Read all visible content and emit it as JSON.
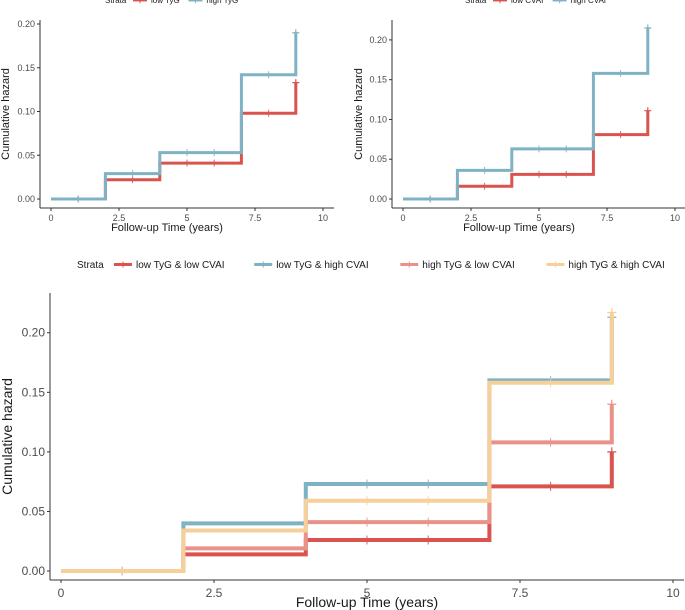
{
  "chart_data": [
    {
      "id": "tyg",
      "type": "line",
      "step": true,
      "xlabel": "Follow-up Time (years)",
      "ylabel": "Cumulative hazard",
      "xlim": [
        0,
        10
      ],
      "ylim": [
        0,
        0.2
      ],
      "xticks": [
        0,
        2.5,
        5,
        7.5,
        10
      ],
      "xtick_labels": [
        "0",
        "2.5",
        "5",
        "7.5",
        "10"
      ],
      "yticks": [
        0,
        0.05,
        0.1,
        0.15,
        0.2
      ],
      "ytick_labels": [
        "0.00",
        "0.05",
        "0.10",
        "0.15",
        "0.20"
      ],
      "legend": {
        "title": "Strata",
        "position": "top"
      },
      "series": [
        {
          "name": "low TyG",
          "color": "#d9534f",
          "x": [
            0,
            2,
            4,
            7,
            9
          ],
          "y": [
            0,
            0.022,
            0.041,
            0.098,
            0.133
          ],
          "censor_x": [
            1,
            3,
            5,
            6,
            8
          ]
        },
        {
          "name": "high TyG",
          "color": "#7fb2c4",
          "x": [
            0,
            2,
            4,
            7,
            9
          ],
          "y": [
            0,
            0.029,
            0.053,
            0.142,
            0.19
          ],
          "censor_x": [
            1,
            3,
            5,
            6,
            8
          ]
        }
      ]
    },
    {
      "id": "cvai",
      "type": "line",
      "step": true,
      "xlabel": "Follow-up Time (years)",
      "ylabel": "Cumulative hazard",
      "xlim": [
        0,
        10
      ],
      "ylim": [
        0,
        0.22
      ],
      "xticks": [
        0,
        2.5,
        5,
        7.5,
        10
      ],
      "xtick_labels": [
        "0",
        "2.5",
        "5",
        "7.5",
        "10"
      ],
      "yticks": [
        0,
        0.05,
        0.1,
        0.15,
        0.2
      ],
      "ytick_labels": [
        "0.00",
        "0.05",
        "0.10",
        "0.15",
        "0.20"
      ],
      "legend": {
        "title": "Strata",
        "position": "top"
      },
      "series": [
        {
          "name": "low CVAI",
          "color": "#d9534f",
          "x": [
            0,
            2,
            4,
            7,
            9
          ],
          "y": [
            0,
            0.016,
            0.031,
            0.081,
            0.111
          ],
          "censor_x": [
            1,
            3,
            5,
            6,
            8
          ]
        },
        {
          "name": "high CVAI",
          "color": "#7fb2c4",
          "x": [
            0,
            2,
            4,
            7,
            9
          ],
          "y": [
            0,
            0.036,
            0.063,
            0.158,
            0.215
          ],
          "censor_x": [
            1,
            3,
            5,
            6,
            8
          ]
        }
      ]
    },
    {
      "id": "combined",
      "type": "line",
      "step": true,
      "xlabel": "Follow-up Time (years)",
      "ylabel": "Cumulative hazard",
      "xlim": [
        0,
        10
      ],
      "ylim": [
        0,
        0.23
      ],
      "xticks": [
        0,
        2.5,
        5,
        7.5,
        10
      ],
      "xtick_labels": [
        "0",
        "2.5",
        "5",
        "7.5",
        "10"
      ],
      "yticks": [
        0,
        0.05,
        0.1,
        0.15,
        0.2
      ],
      "ytick_labels": [
        "0.00",
        "0.05",
        "0.10",
        "0.15",
        "0.20"
      ],
      "legend": {
        "title": "Strata",
        "position": "top"
      },
      "series": [
        {
          "name": "low TyG & low CVAI",
          "color": "#d9534f",
          "x": [
            0,
            2,
            4,
            7,
            9
          ],
          "y": [
            0,
            0.014,
            0.026,
            0.071,
            0.1
          ],
          "censor_x": [
            1,
            5,
            6,
            8
          ]
        },
        {
          "name": "low TyG & high CVAI",
          "color": "#7fb2c4",
          "x": [
            0,
            2,
            4,
            7,
            9
          ],
          "y": [
            0,
            0.04,
            0.073,
            0.16,
            0.213
          ],
          "censor_x": [
            1,
            5,
            6,
            8
          ]
        },
        {
          "name": "high TyG & low CVAI",
          "color": "#e8928a",
          "x": [
            0,
            2,
            4,
            7,
            9
          ],
          "y": [
            0,
            0.019,
            0.041,
            0.108,
            0.14
          ],
          "censor_x": [
            1,
            5,
            6,
            8
          ]
        },
        {
          "name": "high TyG & high CVAI",
          "color": "#f7cf9a",
          "x": [
            0,
            2,
            4,
            7,
            9
          ],
          "y": [
            0,
            0.034,
            0.059,
            0.158,
            0.217
          ],
          "censor_x": [
            1,
            5,
            6,
            8
          ]
        }
      ]
    }
  ]
}
